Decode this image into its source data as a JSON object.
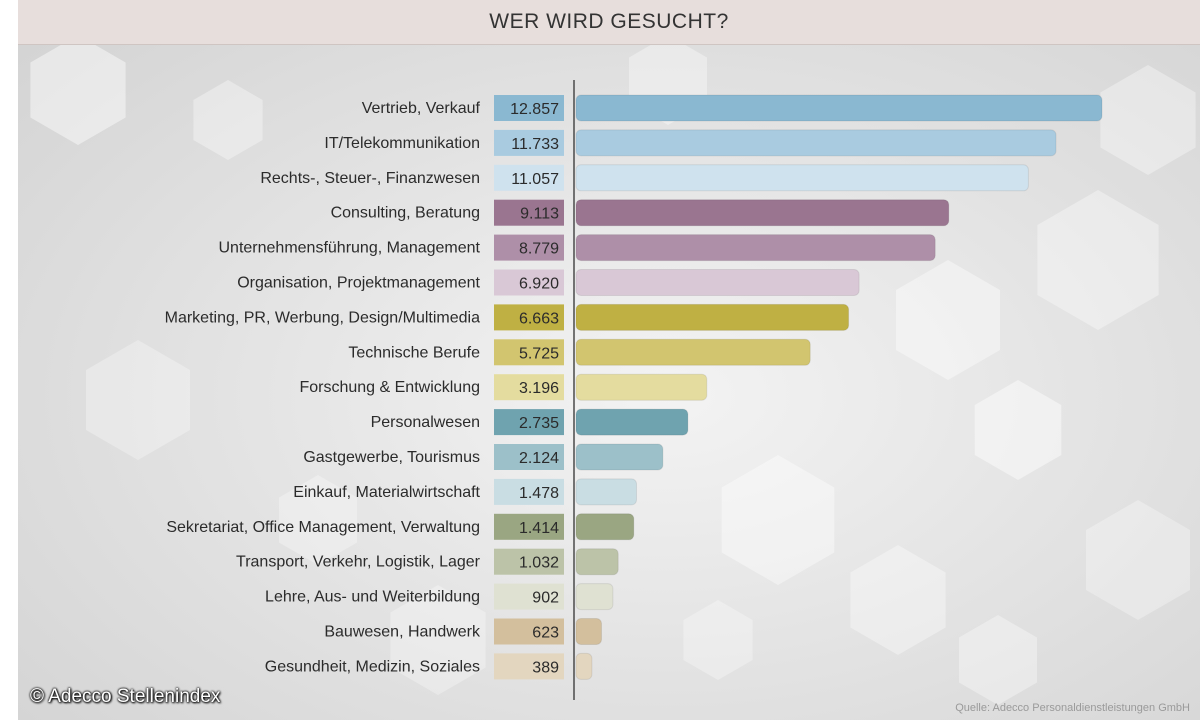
{
  "colors": {
    "header_bg": "#e7dedc",
    "series": [
      "#8ab8d1",
      "#a9cbe0",
      "#cfe2ee",
      "#9a7590",
      "#ae8fa8",
      "#d9c8d6",
      "#bfb043",
      "#d2c56f",
      "#e4dc9f",
      "#6fa3af",
      "#9cc0c9",
      "#c9dde3",
      "#9aa682",
      "#bcc3a8",
      "#dfe1d2",
      "#d3bf9d",
      "#e3d6bf"
    ]
  },
  "chart_data": {
    "type": "bar",
    "orientation": "horizontal",
    "title": "WER WIRD GESUCHT?",
    "categories": [
      "Vertrieb, Verkauf",
      "IT/Telekommunikation",
      "Rechts-, Steuer-, Finanzwesen",
      "Consulting, Beratung",
      "Unternehmensführung, Management",
      "Organisation, Projektmanagement",
      "Marketing, PR, Werbung, Design/Multimedia",
      "Technische Berufe",
      "Forschung & Entwicklung",
      "Personalwesen",
      "Gastgewerbe, Tourismus",
      "Einkauf, Materialwirtschaft",
      "Sekretariat, Office Management, Verwaltung",
      "Transport, Verkehr, Logistik, Lager",
      "Lehre, Aus- und Weiterbildung",
      "Bauwesen, Handwerk",
      "Gesundheit, Medizin, Soziales"
    ],
    "values": [
      12857,
      11733,
      11057,
      9113,
      8779,
      6920,
      6663,
      5725,
      3196,
      2735,
      2124,
      1478,
      1414,
      1032,
      902,
      623,
      389
    ],
    "value_labels": [
      "12.857",
      "11.733",
      "11.057",
      "9.113",
      "8.779",
      "6.920",
      "6.663",
      "5.725",
      "3.196",
      "2.735",
      "2.124",
      "1.478",
      "1.414",
      "1.032",
      "902",
      "623",
      "389"
    ],
    "xlim": [
      0,
      13000
    ],
    "grid": false,
    "legend": "none"
  },
  "footer": {
    "copyright": "© Adecco Stellenindex",
    "source": "Quelle: Adecco Personaldienstleistungen GmbH"
  }
}
